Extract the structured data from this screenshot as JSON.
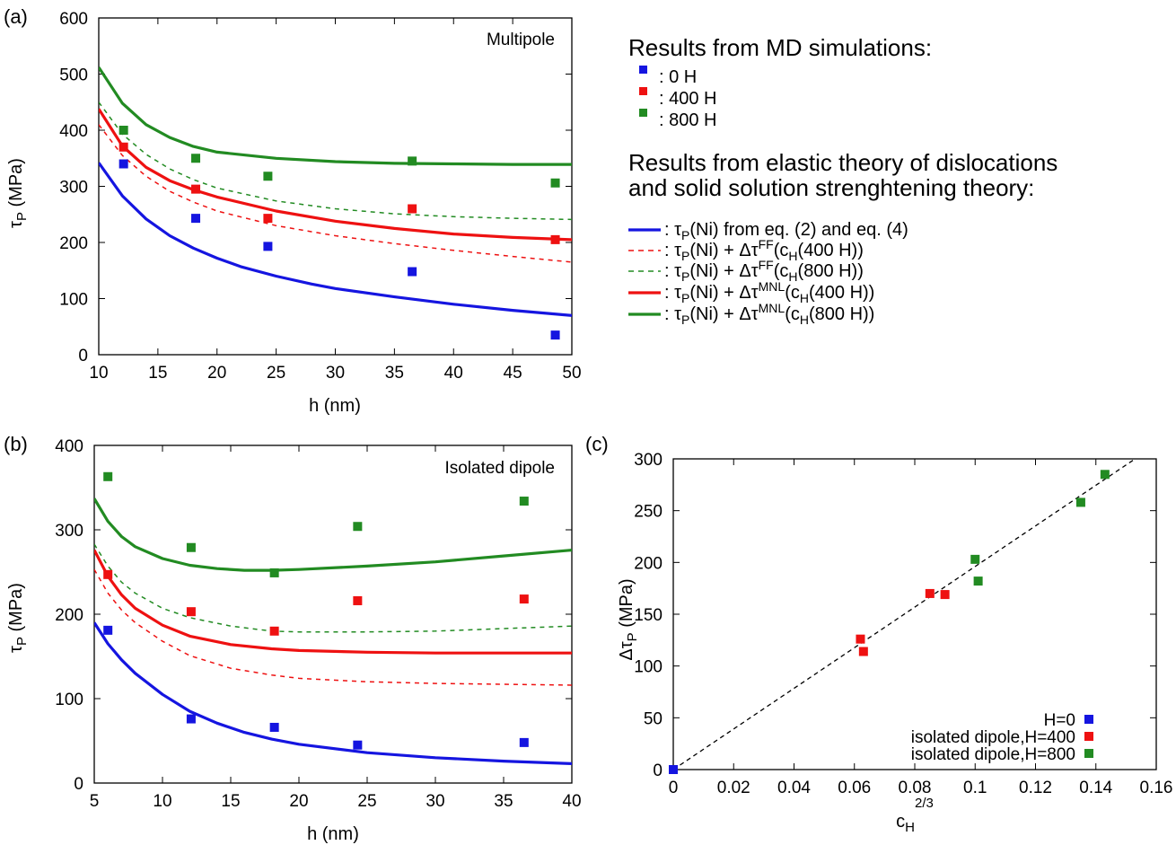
{
  "legend": {
    "md_header": "Results from MD simulations:",
    "md_items": [
      {
        "label": ": 0  H",
        "color": "#1515e0"
      },
      {
        "label": ": 400 H",
        "color": "#ee1111"
      },
      {
        "label": ": 800 H",
        "color": "#228b22"
      }
    ],
    "theory_header_1": "Results from elastic theory of dislocations",
    "theory_header_2": "and solid solution strenghtening theory:",
    "theory_items": [
      {
        "prefix": ": τ",
        "sub": "P",
        "rest": "(Ni) from eq. (2) and eq. (4)",
        "sup": "",
        "tail": "",
        "color": "#1515e0",
        "dash": ""
      },
      {
        "prefix": ": τ",
        "sub": "P",
        "rest": "(Ni) + Δτ",
        "sup": "FF",
        "tail": "(c",
        "sub2": "H",
        "tail2": "(400 H))",
        "color": "#ee1111",
        "dash": "6,5"
      },
      {
        "prefix": ": τ",
        "sub": "P",
        "rest": "(Ni) + Δτ",
        "sup": "FF",
        "tail": "(c",
        "sub2": "H",
        "tail2": "(800 H))",
        "color": "#228b22",
        "dash": "6,5"
      },
      {
        "prefix": ": τ",
        "sub": "P",
        "rest": "(Ni) + Δτ",
        "sup": "MNL",
        "tail": "(c",
        "sub2": "H",
        "tail2": "(400 H))",
        "color": "#ee1111",
        "dash": ""
      },
      {
        "prefix": ": τ",
        "sub": "P",
        "rest": "(Ni) + Δτ",
        "sup": "MNL",
        "tail": "(c",
        "sub2": "H",
        "tail2": "(800 H))",
        "color": "#228b22",
        "dash": ""
      }
    ]
  },
  "chart_data": [
    {
      "panel": "(a)",
      "type": "scatter",
      "inset_label": "Multipole",
      "xlabel": "h (nm)",
      "ylabel": "τ",
      "ylabel_sub": "P",
      "ylabel_unit": " (MPa)",
      "xlim": [
        10,
        50
      ],
      "ylim": [
        0,
        600
      ],
      "xticks": [
        10,
        15,
        20,
        25,
        30,
        35,
        40,
        45,
        50
      ],
      "yticks": [
        0,
        100,
        200,
        300,
        400,
        500,
        600
      ],
      "scatter": [
        {
          "name": "0 H",
          "color": "#1515e0",
          "x": [
            12.1,
            18.2,
            24.3,
            36.5,
            48.6
          ],
          "y": [
            340,
            243,
            193,
            148,
            35
          ]
        },
        {
          "name": "400 H",
          "color": "#ee1111",
          "x": [
            12.1,
            18.2,
            24.3,
            36.5,
            48.6
          ],
          "y": [
            370,
            295,
            243,
            260,
            205
          ]
        },
        {
          "name": "800 H",
          "color": "#228b22",
          "x": [
            12.1,
            18.2,
            24.3,
            36.5,
            48.6
          ],
          "y": [
            400,
            350,
            318,
            345,
            306
          ]
        }
      ],
      "curves": [
        {
          "color": "#1515e0",
          "dash": "",
          "x": [
            10,
            12,
            14,
            16,
            18,
            20,
            22,
            25,
            28,
            30,
            35,
            40,
            45,
            50
          ],
          "y": [
            342,
            283,
            242,
            212,
            190,
            172,
            157,
            140,
            126,
            118,
            103,
            90,
            79,
            70
          ]
        },
        {
          "color": "#ee1111",
          "dash": "5,5",
          "x": [
            10,
            12,
            14,
            16,
            18,
            20,
            25,
            30,
            35,
            40,
            45,
            50
          ],
          "y": [
            410,
            355,
            318,
            291,
            272,
            256,
            230,
            212,
            198,
            186,
            175,
            165
          ]
        },
        {
          "color": "#228b22",
          "dash": "5,5",
          "x": [
            10,
            12,
            14,
            16,
            18,
            20,
            25,
            30,
            35,
            40,
            45,
            50
          ],
          "y": [
            450,
            393,
            357,
            331,
            312,
            297,
            274,
            260,
            251,
            246,
            243,
            241
          ]
        },
        {
          "color": "#ee1111",
          "dash": "",
          "x": [
            10,
            12,
            14,
            16,
            18,
            20,
            25,
            30,
            35,
            40,
            45,
            50
          ],
          "y": [
            438,
            372,
            334,
            310,
            294,
            281,
            256,
            238,
            225,
            215,
            209,
            205
          ]
        },
        {
          "color": "#228b22",
          "dash": "",
          "x": [
            10,
            12,
            14,
            16,
            18,
            20,
            25,
            30,
            35,
            40,
            45,
            50
          ],
          "y": [
            512,
            448,
            410,
            387,
            371,
            361,
            350,
            344,
            341,
            340,
            339,
            339
          ]
        }
      ]
    },
    {
      "panel": "(b)",
      "type": "scatter",
      "inset_label": "Isolated dipole",
      "xlabel": "h (nm)",
      "ylabel": "τ",
      "ylabel_sub": "P",
      "ylabel_unit": " (MPa)",
      "xlim": [
        5,
        40
      ],
      "ylim": [
        0,
        400
      ],
      "xticks": [
        5,
        10,
        15,
        20,
        25,
        30,
        35,
        40
      ],
      "yticks": [
        0,
        100,
        200,
        300,
        400
      ],
      "scatter": [
        {
          "name": "0 H",
          "color": "#1515e0",
          "x": [
            6.0,
            12.1,
            18.2,
            24.3,
            36.5
          ],
          "y": [
            181,
            76,
            66,
            45,
            48
          ]
        },
        {
          "name": "400 H",
          "color": "#ee1111",
          "x": [
            6.0,
            12.1,
            18.2,
            24.3,
            36.5
          ],
          "y": [
            247,
            203,
            180,
            216,
            218
          ]
        },
        {
          "name": "800 H",
          "color": "#228b22",
          "x": [
            6.0,
            12.1,
            18.2,
            24.3,
            36.5
          ],
          "y": [
            363,
            279,
            249,
            304,
            334
          ]
        }
      ],
      "curves": [
        {
          "color": "#1515e0",
          "dash": "",
          "x": [
            5,
            6,
            7,
            8,
            10,
            12,
            14,
            16,
            18,
            20,
            25,
            30,
            35,
            40
          ],
          "y": [
            190,
            165,
            146,
            130,
            105,
            85,
            71,
            60,
            52,
            46,
            36,
            30,
            26,
            23
          ]
        },
        {
          "color": "#ee1111",
          "dash": "5,5",
          "x": [
            5,
            6,
            7,
            8,
            10,
            12,
            15,
            18,
            20,
            25,
            30,
            35,
            40
          ],
          "y": [
            253,
            225,
            205,
            190,
            168,
            151,
            136,
            128,
            124,
            120,
            118,
            117,
            116
          ]
        },
        {
          "color": "#228b22",
          "dash": "5,5",
          "x": [
            5,
            6,
            7,
            8,
            10,
            12,
            15,
            18,
            20,
            25,
            30,
            35,
            40
          ],
          "y": [
            283,
            257,
            238,
            225,
            207,
            196,
            186,
            180,
            179,
            179,
            180,
            183,
            186
          ]
        },
        {
          "color": "#ee1111",
          "dash": "",
          "x": [
            5,
            6,
            7,
            8,
            10,
            12,
            15,
            18,
            20,
            25,
            30,
            35,
            40
          ],
          "y": [
            276,
            245,
            223,
            207,
            187,
            174,
            164,
            159,
            157,
            155,
            154,
            154,
            154
          ]
        },
        {
          "color": "#228b22",
          "dash": "",
          "x": [
            5,
            6,
            7,
            8,
            10,
            12,
            14,
            16,
            18,
            20,
            25,
            30,
            35,
            40
          ],
          "y": [
            337,
            310,
            292,
            280,
            266,
            258,
            254,
            252,
            252,
            253,
            257,
            262,
            269,
            276
          ]
        }
      ]
    },
    {
      "panel": "(c)",
      "type": "scatter",
      "xlabel": "c",
      "xlabel_sub": "H",
      "xlabel_sup": "2/3",
      "ylabel": "Δτ",
      "ylabel_sub": "P",
      "ylabel_unit": " (MPa)",
      "xlim": [
        0,
        0.16
      ],
      "ylim": [
        0,
        300
      ],
      "xticks": [
        "0",
        "0.02",
        "0.04",
        "0.06",
        "0.08",
        "0.1",
        "0.12",
        "0.14",
        "0.16"
      ],
      "xtick_values": [
        0,
        0.02,
        0.04,
        0.06,
        0.08,
        0.1,
        0.12,
        0.14,
        0.16
      ],
      "yticks": [
        0,
        50,
        100,
        150,
        200,
        250,
        300
      ],
      "scatter": [
        {
          "name": "H=0",
          "color": "#1515e0",
          "x": [
            0.0
          ],
          "y": [
            0
          ]
        },
        {
          "name": "isolated dipole,H=400",
          "color": "#ee1111",
          "x": [
            0.062,
            0.063,
            0.085,
            0.09
          ],
          "y": [
            126,
            114,
            170,
            169
          ]
        },
        {
          "name": "isolated dipole,H=800",
          "color": "#228b22",
          "x": [
            0.1,
            0.101,
            0.135,
            0.143
          ],
          "y": [
            203,
            182,
            258,
            285
          ]
        }
      ],
      "fit_line": {
        "x": [
          0,
          0.153
        ],
        "y": [
          0,
          300
        ]
      }
    }
  ]
}
